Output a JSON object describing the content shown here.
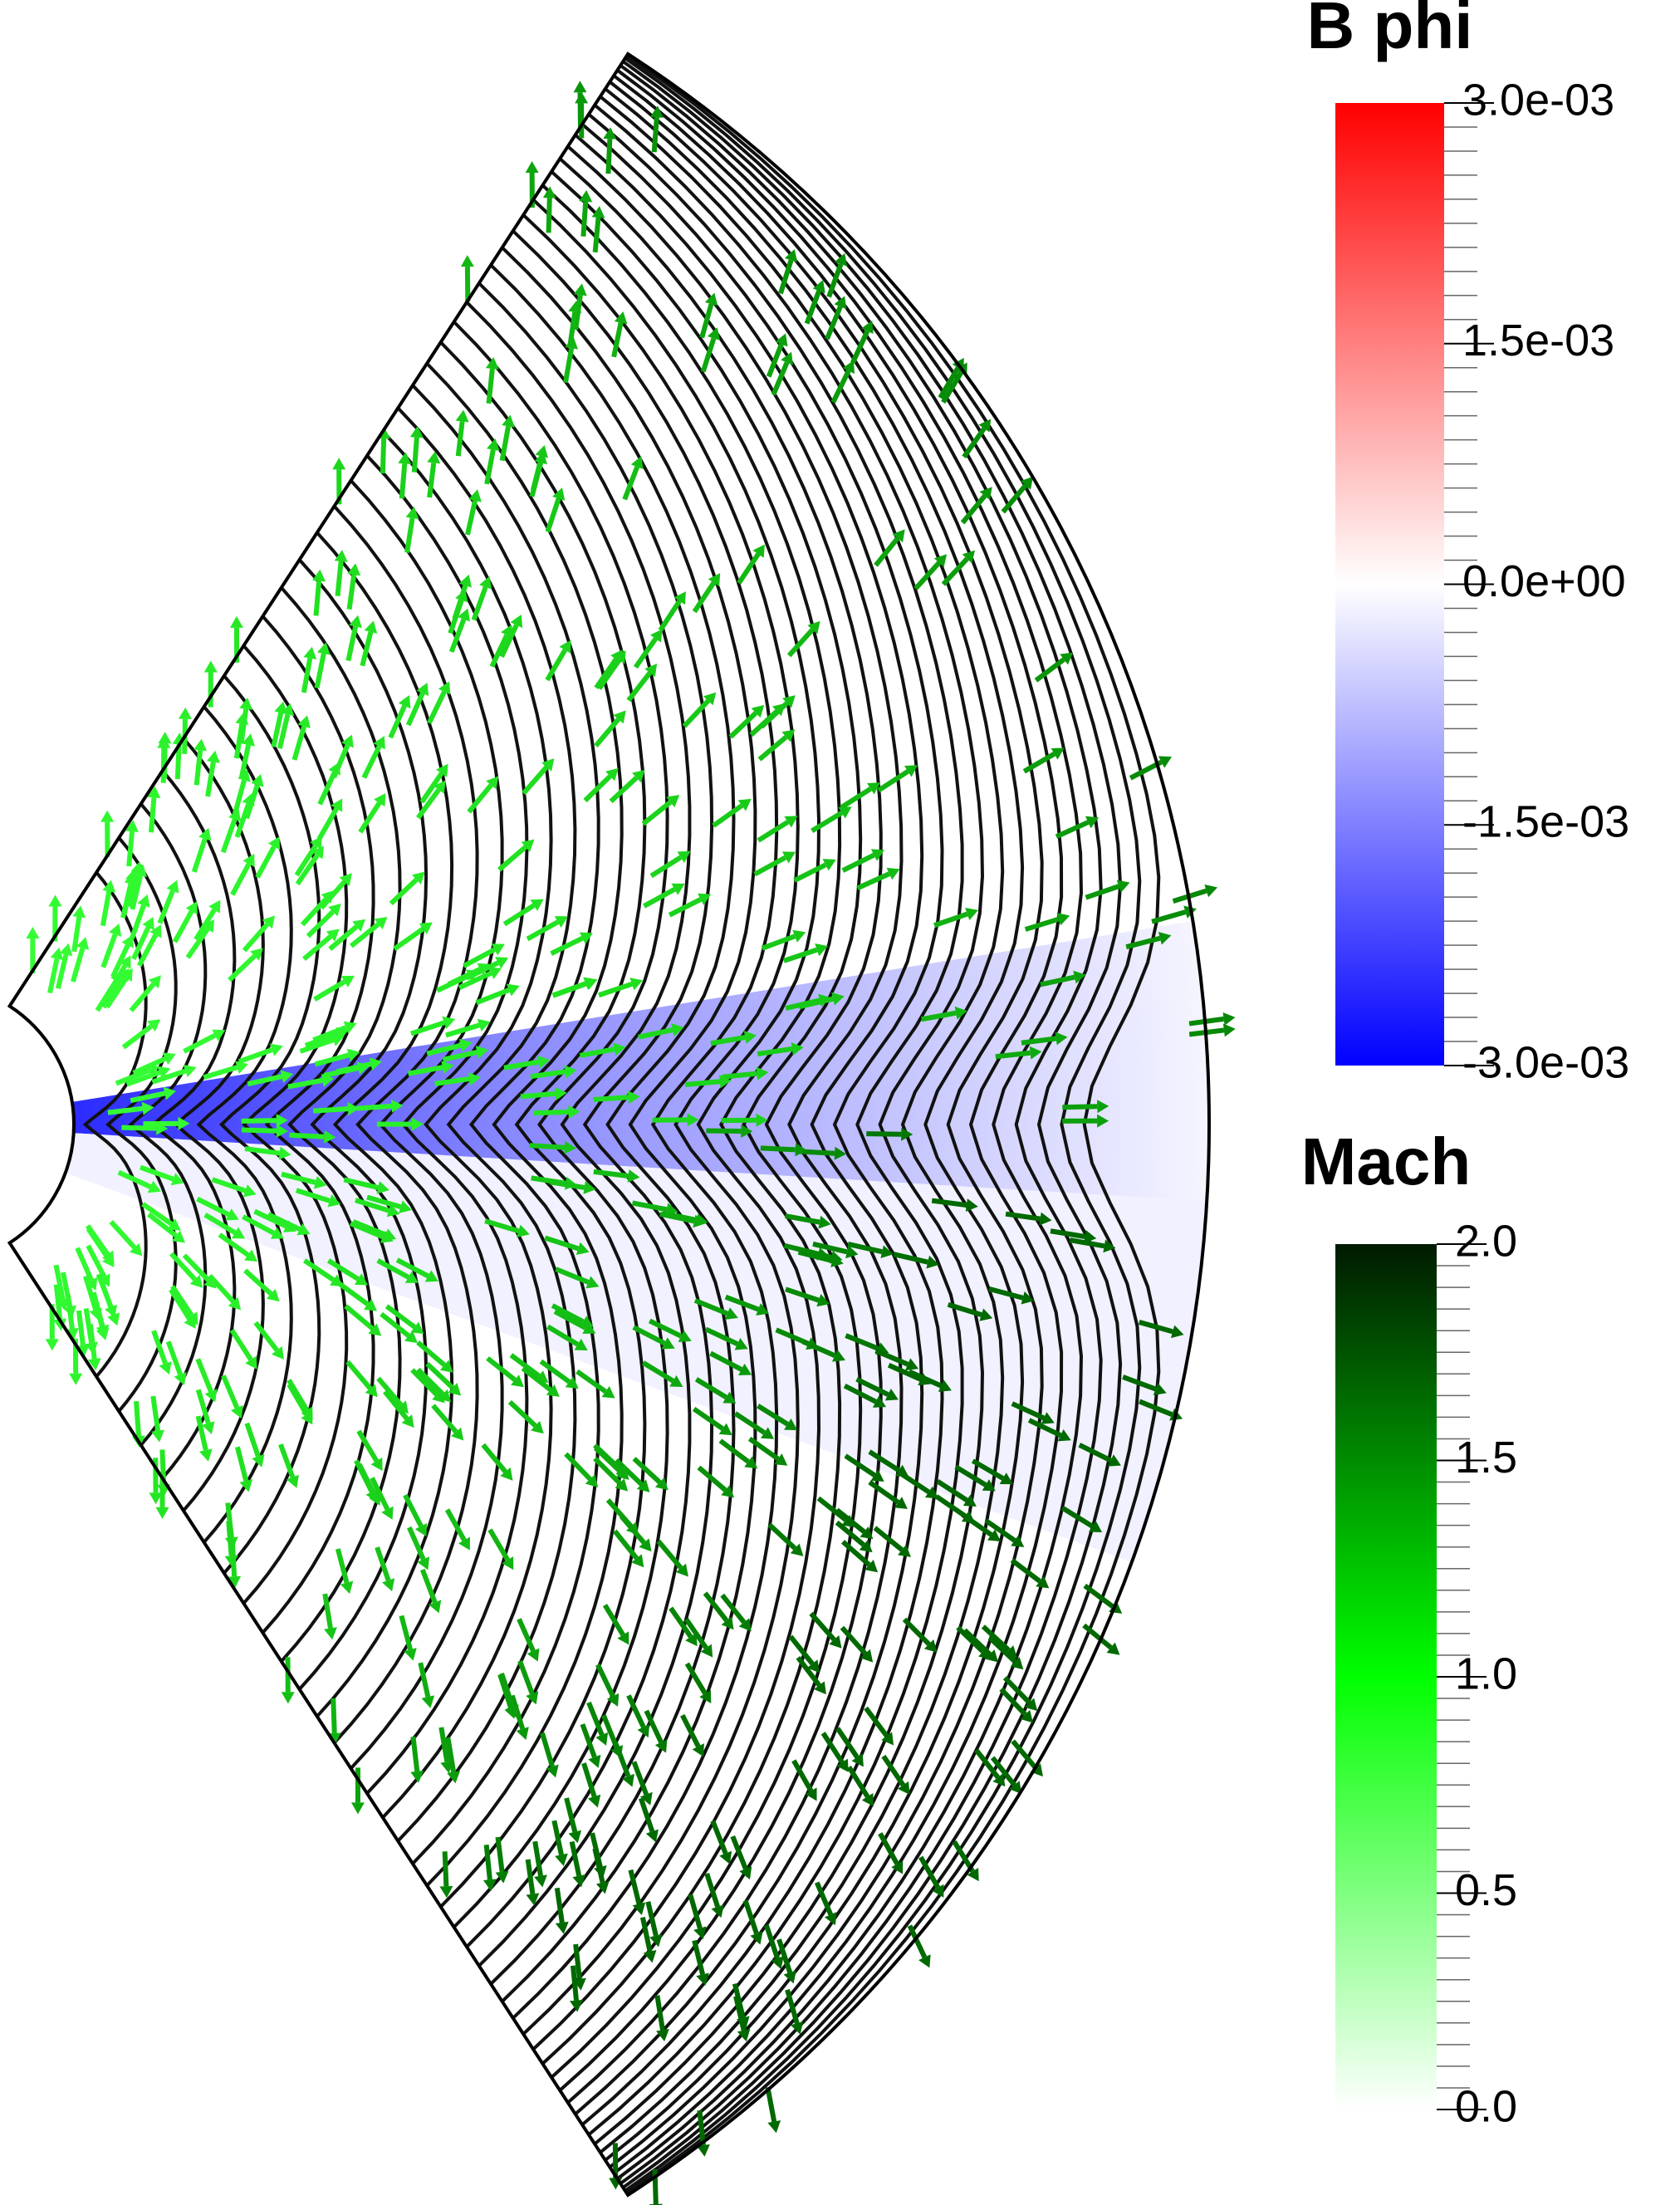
{
  "colorbars": [
    {
      "title": "B phi",
      "range": [
        -0.003,
        0.003
      ],
      "colors": [
        "#0000ff",
        "#ffffff",
        "#ff0000"
      ],
      "ticks": [
        {
          "value": 0.003,
          "label": "3.0e-03"
        },
        {
          "value": 0.0015,
          "label": "1.5e-03"
        },
        {
          "value": 0,
          "label": "0.0e+00"
        },
        {
          "value": -0.0015,
          "label": "-1.5e-03"
        },
        {
          "value": -0.003,
          "label": "-3.0e-03"
        }
      ]
    },
    {
      "title": "Mach",
      "range": [
        0,
        2
      ],
      "colors": [
        "#ffffff",
        "#00ff00",
        "#001a00"
      ],
      "ticks": [
        {
          "value": 2,
          "label": "2.0"
        },
        {
          "value": 1.5,
          "label": "1.5"
        },
        {
          "value": 1,
          "label": "1.0"
        },
        {
          "value": 0.5,
          "label": "0.5"
        },
        {
          "value": 0,
          "label": "0.0"
        }
      ]
    }
  ]
}
